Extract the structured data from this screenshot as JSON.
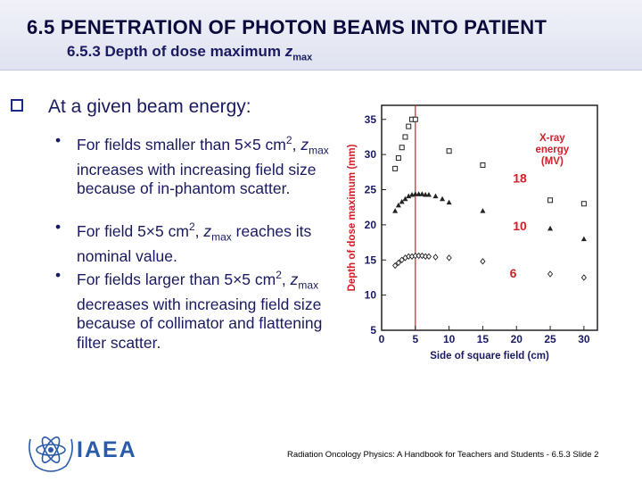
{
  "header": {
    "title": "6.5 PENETRATION OF PHOTON BEAMS INTO PATIENT",
    "subtitle_prefix": "6.5.3 Depth of dose maximum ",
    "subtitle_var": "z",
    "subtitle_sub": "max"
  },
  "main_point": "At a given beam energy:",
  "bullets": [
    {
      "p1": "For fields smaller than 5×5 cm",
      "sup": "2",
      "p2": ",",
      "var": "z",
      "sub": "max",
      "p3": " increases with increasing field size because of in-phantom scatter."
    },
    {
      "p1": "For field 5×5 cm",
      "sup": "2",
      "p2": ", ",
      "var": "z",
      "sub": "max",
      "p3": " reaches its nominal value."
    },
    {
      "p1": "For fields larger than 5×5 cm",
      "sup": "2",
      "p2": ",",
      "var": "z",
      "sub": "max",
      "p3": " decreases with increasing field size because of collimator and flattening filter scatter."
    }
  ],
  "chart_data": {
    "type": "scatter",
    "xlabel": "Side of square field (cm)",
    "ylabel": "Depth of dose maximum (mm)",
    "xlim": [
      0,
      32
    ],
    "ylim": [
      5,
      37
    ],
    "xticks": [
      0,
      5,
      10,
      15,
      20,
      25,
      30
    ],
    "yticks": [
      5,
      10,
      15,
      20,
      25,
      30,
      35
    ],
    "vline_x": 5,
    "legend_title": "X-ray energy (MV)",
    "series": [
      {
        "name": "18",
        "marker": "square",
        "x": [
          2,
          2.5,
          3,
          3.5,
          4,
          4.5,
          5,
          10,
          15,
          25,
          30
        ],
        "y": [
          28,
          29.5,
          31,
          32.5,
          34,
          35,
          35,
          30.5,
          28.5,
          23.5,
          23
        ]
      },
      {
        "name": "10",
        "marker": "triangle",
        "x": [
          2,
          2.5,
          3,
          3.5,
          4,
          4.5,
          5,
          5.5,
          6,
          6.5,
          7,
          8,
          9,
          10,
          15,
          25,
          30
        ],
        "y": [
          22,
          22.8,
          23.3,
          23.7,
          24.1,
          24.3,
          24.4,
          24.4,
          24.4,
          24.3,
          24.3,
          24.1,
          23.7,
          23.2,
          22,
          19.5,
          18
        ]
      },
      {
        "name": "6",
        "marker": "diamond",
        "x": [
          2,
          2.5,
          3,
          3.5,
          4,
          4.5,
          5,
          5.5,
          6,
          6.5,
          7,
          8,
          10,
          15,
          25,
          30
        ],
        "y": [
          14.2,
          14.6,
          15,
          15.3,
          15.5,
          15.5,
          15.6,
          15.6,
          15.6,
          15.5,
          15.5,
          15.4,
          15.3,
          14.8,
          13,
          12.5
        ]
      }
    ]
  },
  "footer": "Radiation Oncology Physics: A Handbook for Teachers and Students - 6.5.3 Slide 2",
  "logo_text": "IAEA",
  "colors": {
    "title": "#0a0a3c",
    "text": "#1a1a60",
    "chart_red": "#d2202a",
    "iaea_blue": "#2b5aa8"
  }
}
